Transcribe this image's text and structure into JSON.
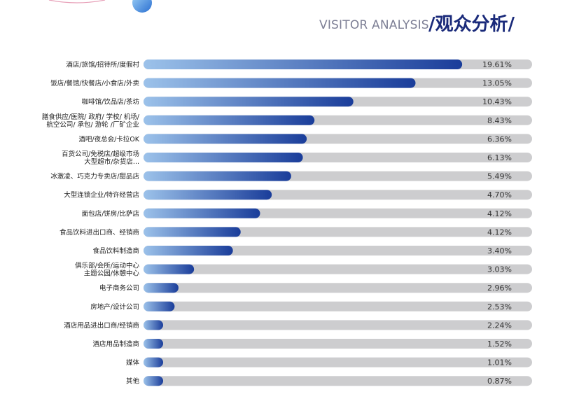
{
  "header": {
    "english_title": "VISITOR ANALYSIS",
    "chinese_title": "/观众分析/"
  },
  "colors": {
    "track": "#cdcdcf",
    "bar_start": "#9cc2ea",
    "bar_end": "#1a3d9a",
    "accent": "#1a2a7a"
  },
  "chart_data": {
    "type": "bar",
    "orientation": "horizontal",
    "xlim": [
      0,
      24
    ],
    "categories": [
      [
        "酒店/旅馆/招待所/度假村"
      ],
      [
        "饭店/餐馆/快餐店/小食店/外卖"
      ],
      [
        "咖啡馆/饮品店/茶坊"
      ],
      [
        "膳食供应/医院/ 政府/ 学校/ 机场/",
        "航空公司/ 承包/ 游轮 /厂矿企业"
      ],
      [
        "酒吧/夜总会/卡拉OK"
      ],
      [
        "百货公司/免税店/超级市场",
        "大型超市/杂货店..."
      ],
      [
        "冰激凌、巧克力专卖店/甜品店"
      ],
      [
        "大型连锁企业/特许经营店"
      ],
      [
        "面包店/饼房/比萨店"
      ],
      [
        "食品饮料进出口商、经销商"
      ],
      [
        "食品饮料制造商"
      ],
      [
        "俱乐部/会所/运动中心",
        "主题公园/休憩中心"
      ],
      [
        "电子商务公司"
      ],
      [
        "房地产/设计公司"
      ],
      [
        "酒店用品进出口商/经销商"
      ],
      [
        "酒店用品制造商"
      ],
      [
        "媒体"
      ],
      [
        "其他"
      ]
    ],
    "values": [
      19.61,
      13.05,
      10.43,
      8.43,
      6.36,
      6.13,
      5.49,
      4.7,
      4.12,
      4.12,
      3.4,
      3.03,
      2.96,
      2.53,
      2.24,
      1.52,
      1.01,
      0.87
    ],
    "value_labels": [
      "19.61%",
      "13.05%",
      "10.43%",
      "8.43%",
      "6.36%",
      "6.13%",
      "5.49%",
      "4.70%",
      "4.12%",
      "4.12%",
      "3.40%",
      "3.03%",
      "2.96%",
      "2.53%",
      "2.24%",
      "1.52%",
      "1.01%",
      "0.87%"
    ],
    "bar_fractions": [
      0.82,
      0.7,
      0.54,
      0.44,
      0.42,
      0.41,
      0.38,
      0.33,
      0.3,
      0.25,
      0.23,
      0.13,
      0.09,
      0.08,
      0.05,
      0.05,
      0.05,
      0.05
    ],
    "legend": "none",
    "grid": false
  }
}
